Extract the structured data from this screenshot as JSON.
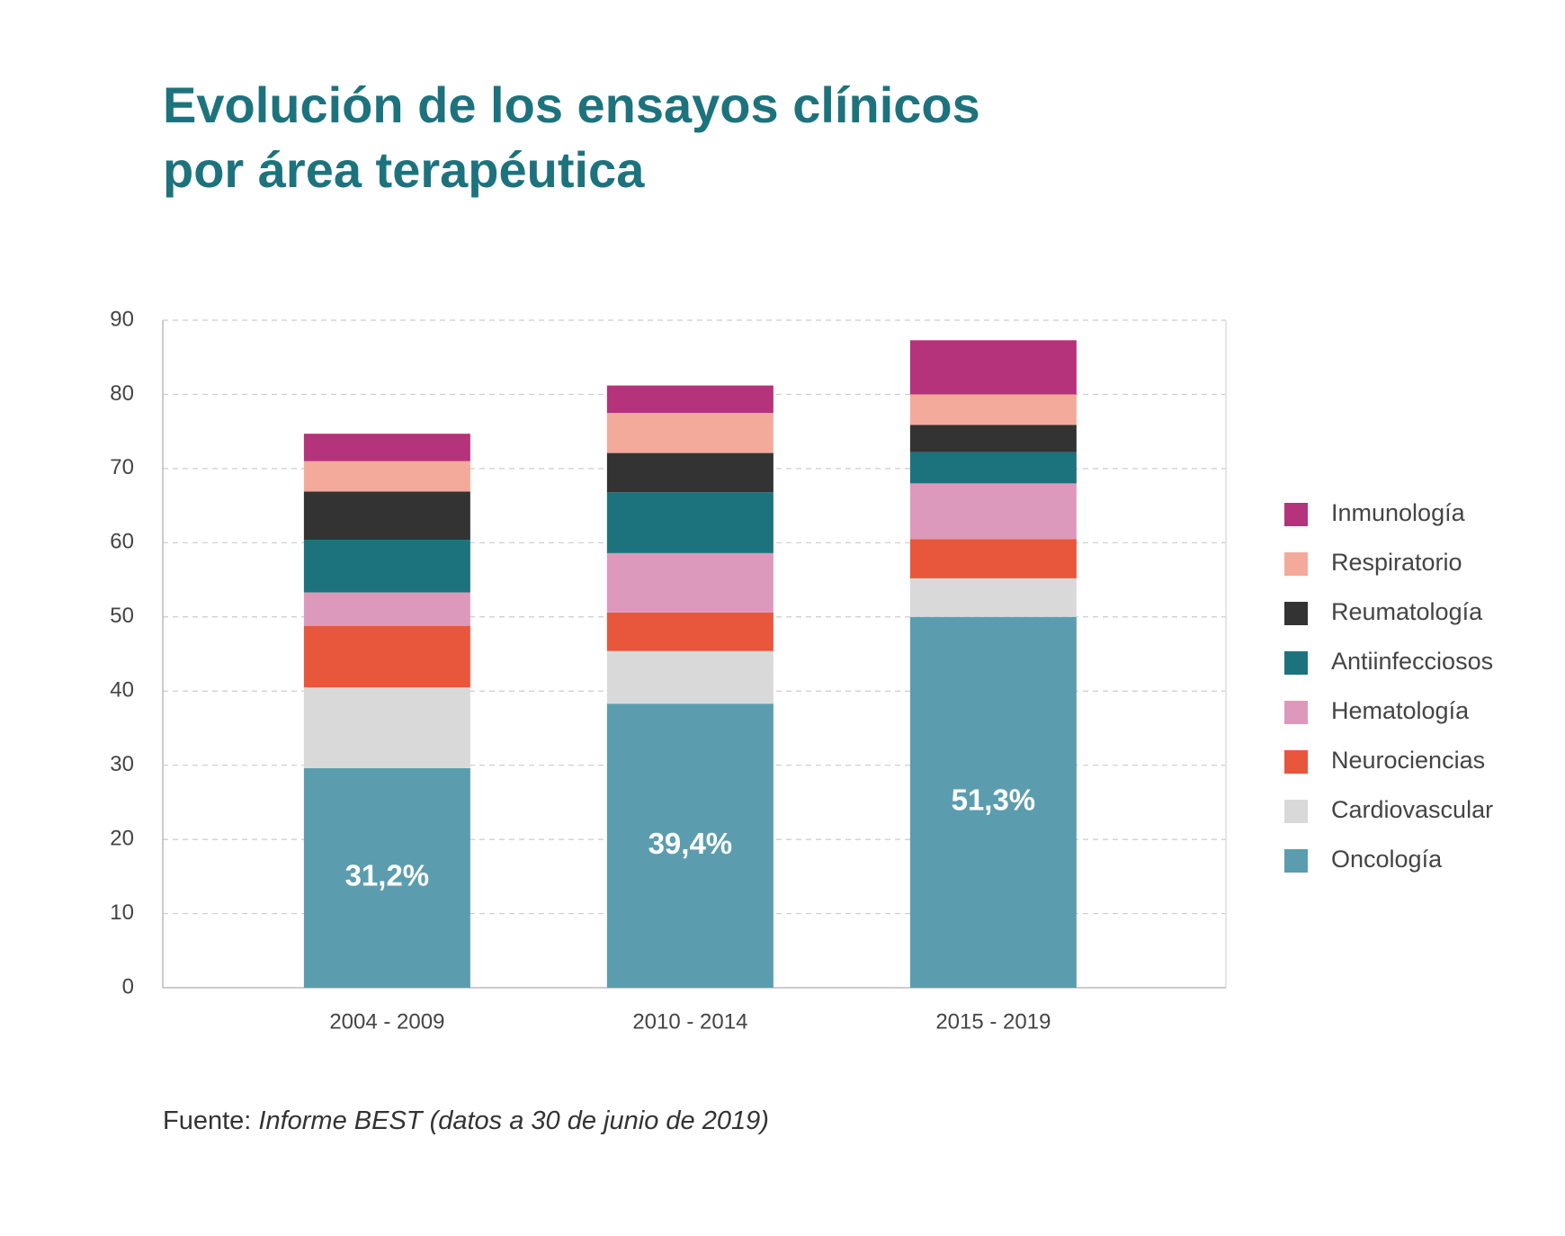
{
  "chart_data": {
    "type": "bar",
    "stacked": true,
    "title": [
      "Evolución de los ensayos clínicos",
      "por área terapéutica"
    ],
    "categories": [
      "2004 - 2009",
      "2010 - 2014",
      "2015 - 2019"
    ],
    "series": [
      {
        "name": "Oncología",
        "color": "#5b9daf",
        "values": [
          29.6,
          38.3,
          50.0
        ]
      },
      {
        "name": "Cardiovascular",
        "color": "#d9d9d9",
        "values": [
          10.9,
          7.1,
          5.2
        ]
      },
      {
        "name": "Neurociencias",
        "color": "#e8573c",
        "values": [
          8.3,
          5.2,
          5.3
        ]
      },
      {
        "name": "Hematología",
        "color": "#dd99bb",
        "values": [
          4.5,
          8.0,
          7.5
        ]
      },
      {
        "name": "Antiinfecciosos",
        "color": "#1d737d",
        "values": [
          7.1,
          8.2,
          4.2
        ]
      },
      {
        "name": "Reumatología",
        "color": "#333333",
        "values": [
          6.5,
          5.3,
          3.7
        ]
      },
      {
        "name": "Respiratorio",
        "color": "#f4aa9b",
        "values": [
          4.1,
          5.4,
          4.1
        ]
      },
      {
        "name": "Inmunología",
        "color": "#b5337a",
        "values": [
          3.7,
          3.7,
          7.3
        ]
      }
    ],
    "annotations": [
      "31,2%",
      "39,4%",
      "51,3%"
    ],
    "ylim": [
      0,
      90
    ],
    "yticks": [
      0,
      10,
      20,
      30,
      40,
      50,
      60,
      70,
      80,
      90
    ],
    "grid": true,
    "legend": "right",
    "source_label": "Fuente:",
    "source": "Informe BEST (datos a 30 de junio de 2019)"
  }
}
